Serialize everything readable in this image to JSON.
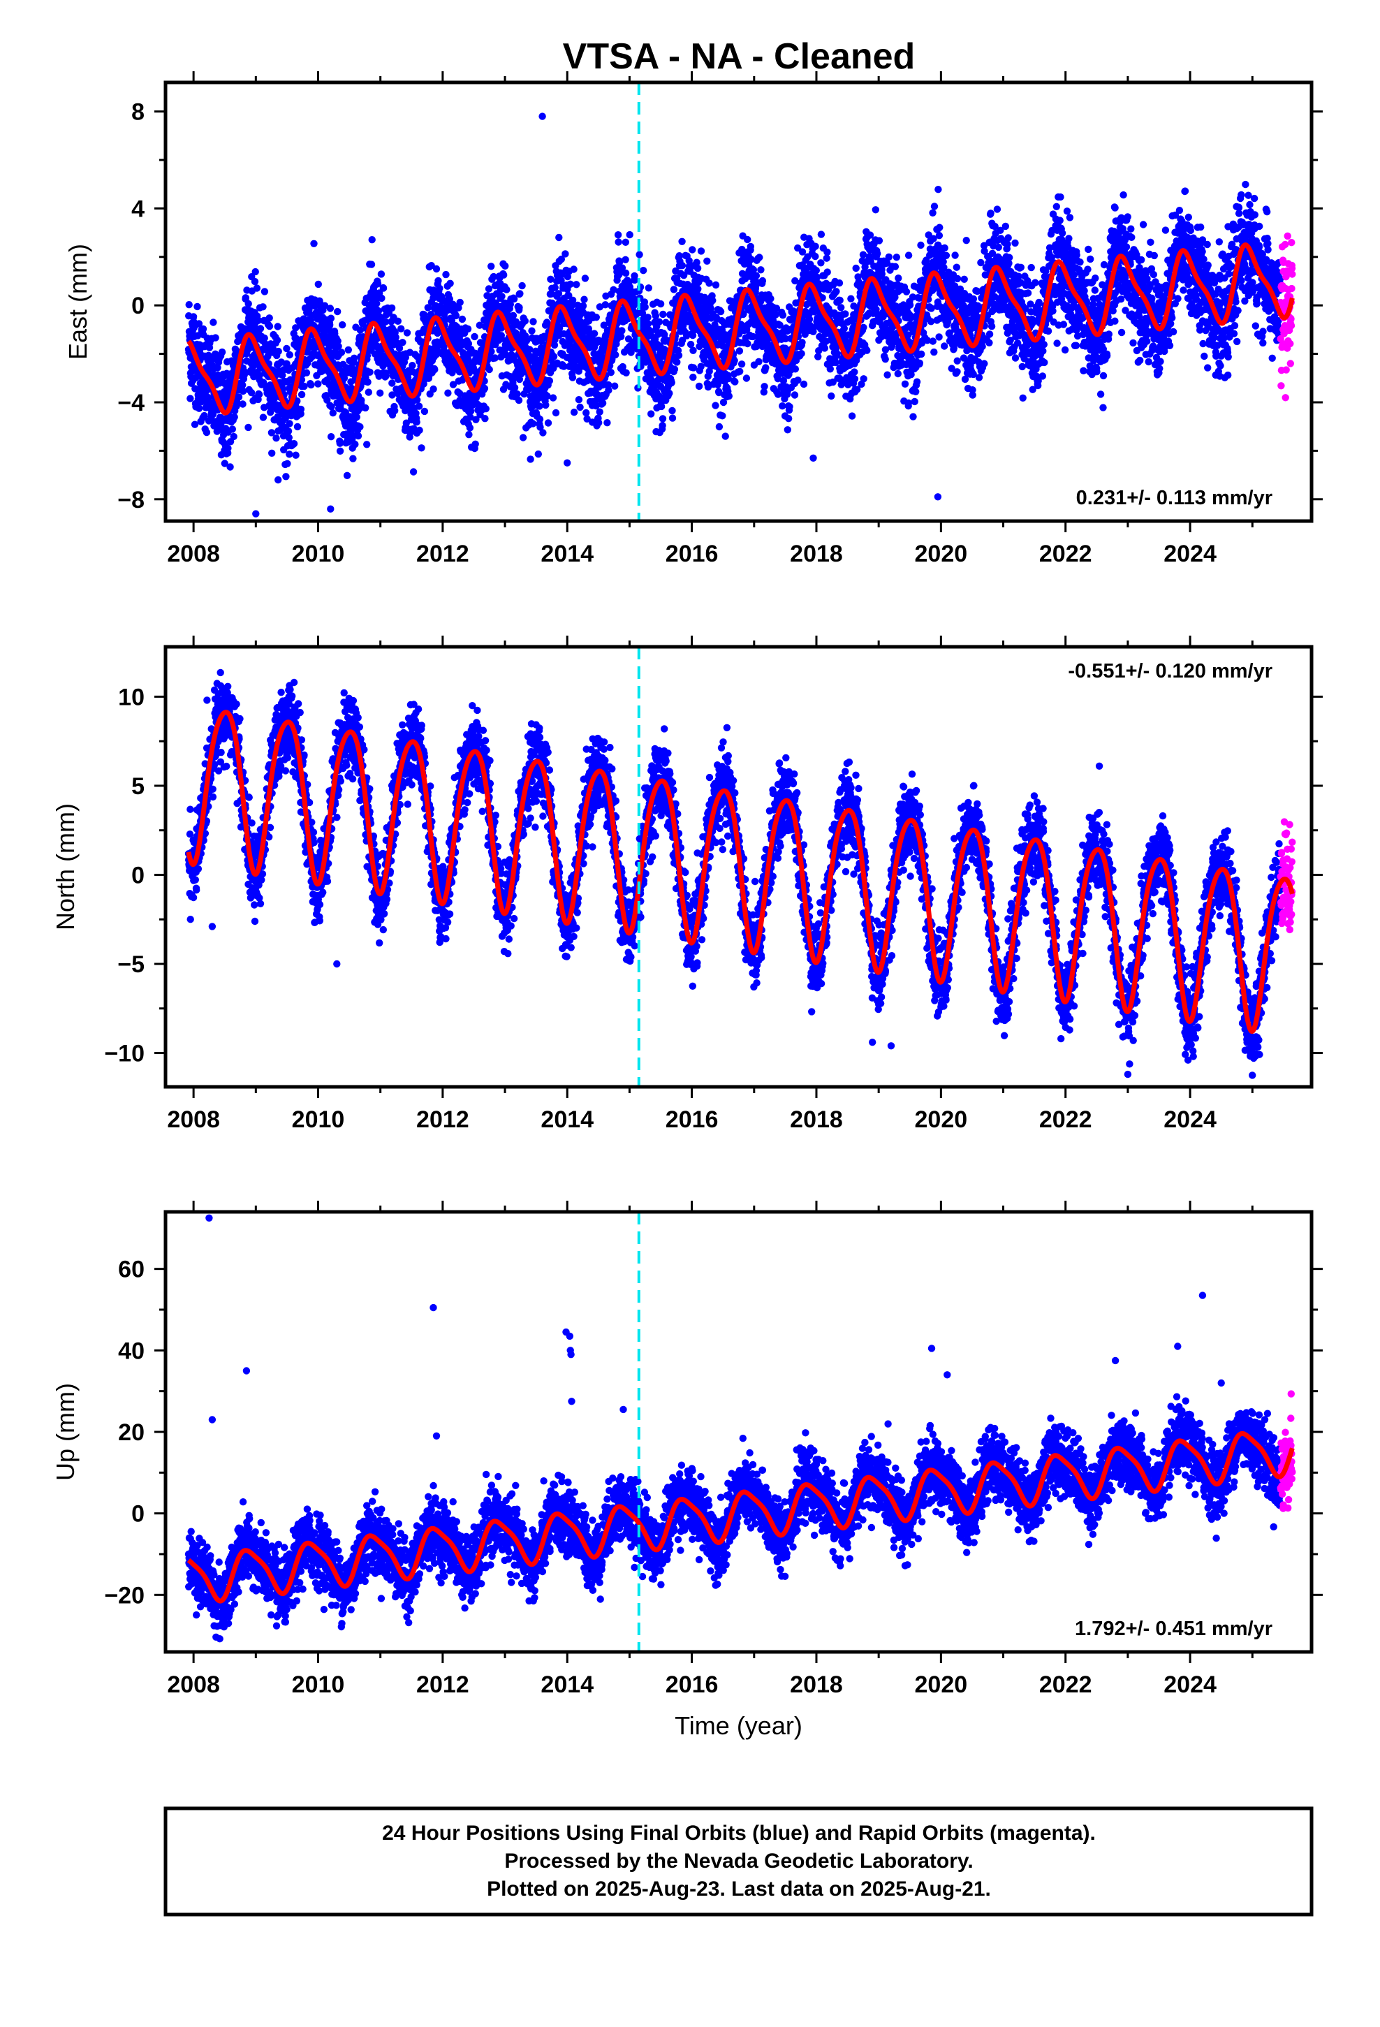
{
  "title": "VTSA  - NA - Cleaned",
  "footer": {
    "lines": [
      "24 Hour Positions Using Final Orbits (blue) and Rapid Orbits (magenta).",
      "Processed by the Nevada Geodetic Laboratory.",
      "Plotted on 2025-Aug-23. Last data on 2025-Aug-21."
    ]
  },
  "colors": {
    "final_points": "#0000ff",
    "rapid_points": "#ff00ff",
    "model_fit": "#ff0000",
    "offset_line": "#00e5ee"
  },
  "chart_data": [
    {
      "type": "scatter",
      "component": "East",
      "xlabel": "",
      "ylabel": "East (mm)",
      "xlim": [
        2007.55,
        2025.95
      ],
      "ylim": [
        -8.9,
        9.2
      ],
      "x_ticks": [
        2008,
        2010,
        2012,
        2014,
        2016,
        2018,
        2020,
        2022,
        2024
      ],
      "x_tick_labels": [
        "2008",
        "2010",
        "2012",
        "2014",
        "2016",
        "2018",
        "2020",
        "2022",
        "2024"
      ],
      "y_ticks": [
        -8,
        -4,
        0,
        4,
        8
      ],
      "y_tick_labels": [
        "−8",
        "−4",
        "0",
        "4",
        "8"
      ],
      "rate_text": "0.231+/- 0.113 mm/yr",
      "rate_position": "bottom-right",
      "offset_epoch": 2015.15,
      "data_start": 2007.92,
      "final_end": 2025.45,
      "rapid_end": 2025.64,
      "model": {
        "offset": -3.0,
        "trend": 0.231,
        "step_at": 2015.15,
        "step": 0.0,
        "annual_amp": 1.4,
        "annual_phase": 0.7,
        "semi_amp": 0.4,
        "semi_phase": 0.2,
        "scatter": 1.1
      },
      "outliers": [
        [
          2013.6,
          7.8
        ],
        [
          2009.0,
          -8.6
        ],
        [
          2010.2,
          -8.4
        ],
        [
          2019.95,
          -7.9
        ],
        [
          2017.95,
          -6.3
        ],
        [
          2014.0,
          -6.5
        ]
      ],
      "series": [
        {
          "name": "Final Orbits (blue)"
        },
        {
          "name": "Rapid Orbits (magenta)"
        },
        {
          "name": ""
        }
      ]
    },
    {
      "type": "scatter",
      "component": "North",
      "xlabel": "",
      "ylabel": "North (mm)",
      "xlim": [
        2007.55,
        2025.95
      ],
      "ylim": [
        -11.9,
        12.8
      ],
      "x_ticks": [
        2008,
        2010,
        2012,
        2014,
        2016,
        2018,
        2020,
        2022,
        2024
      ],
      "x_tick_labels": [
        "2008",
        "2010",
        "2012",
        "2014",
        "2016",
        "2018",
        "2020",
        "2022",
        "2024"
      ],
      "y_ticks": [
        -10,
        -5,
        0,
        5,
        10
      ],
      "y_tick_labels": [
        "−10",
        "−5",
        "0",
        "5",
        "10"
      ],
      "rate_text": "-0.551+/- 0.120 mm/yr",
      "rate_position": "top-right",
      "offset_epoch": 2015.15,
      "data_start": 2007.92,
      "final_end": 2025.45,
      "rapid_end": 2025.64,
      "model": {
        "offset": 5.6,
        "trend": -0.551,
        "step_at": 2015.15,
        "step": 0.0,
        "annual_amp": 4.4,
        "annual_phase": 0.25,
        "semi_amp": 0.6,
        "semi_phase": 0.1,
        "scatter": 1.1
      },
      "outliers": [
        [
          2008.3,
          -2.9
        ],
        [
          2010.3,
          -5.0
        ],
        [
          2018.9,
          -9.4
        ],
        [
          2023.0,
          -11.2
        ],
        [
          2019.2,
          -9.6
        ]
      ],
      "series": [
        {
          "name": "Final Orbits (blue)"
        },
        {
          "name": "Rapid Orbits (magenta)"
        },
        {
          "name": ""
        }
      ]
    },
    {
      "type": "scatter",
      "component": "Up",
      "xlabel": "Time (year)",
      "ylabel": "Up (mm)",
      "xlim": [
        2007.55,
        2025.95
      ],
      "ylim": [
        -34,
        74
      ],
      "x_ticks": [
        2008,
        2010,
        2012,
        2014,
        2016,
        2018,
        2020,
        2022,
        2024
      ],
      "x_tick_labels": [
        "2008",
        "2010",
        "2012",
        "2014",
        "2016",
        "2018",
        "2020",
        "2022",
        "2024"
      ],
      "y_ticks": [
        -20,
        0,
        20,
        40,
        60
      ],
      "y_tick_labels": [
        "−20",
        "0",
        "20",
        "40",
        "60"
      ],
      "rate_text": "1.792+/- 0.451 mm/yr",
      "rate_position": "bottom-right",
      "offset_epoch": 2015.15,
      "data_start": 2007.92,
      "final_end": 2025.45,
      "rapid_end": 2025.64,
      "model": {
        "offset": -16,
        "trend": 1.792,
        "step_at": 2015.15,
        "step": 0.0,
        "annual_amp": 5.5,
        "annual_phase": 0.65,
        "semi_amp": 1.2,
        "semi_phase": 0.1,
        "scatter": 4.0
      },
      "outliers": [
        [
          2008.25,
          72.5
        ],
        [
          2008.3,
          23
        ],
        [
          2008.85,
          35
        ],
        [
          2011.85,
          50.5
        ],
        [
          2011.9,
          19
        ],
        [
          2013.98,
          44.5
        ],
        [
          2014.04,
          43.5
        ],
        [
          2014.05,
          40
        ],
        [
          2014.06,
          39
        ],
        [
          2014.07,
          27.5
        ],
        [
          2014.9,
          25.5
        ],
        [
          2019.85,
          40.5
        ],
        [
          2020.1,
          34
        ],
        [
          2022.8,
          37.5
        ],
        [
          2023.8,
          41
        ],
        [
          2024.2,
          53.5
        ],
        [
          2024.5,
          32
        ]
      ],
      "series": [
        {
          "name": "Final Orbits (blue)"
        },
        {
          "name": "Rapid Orbits (magenta)"
        },
        {
          "name": ""
        }
      ]
    }
  ]
}
